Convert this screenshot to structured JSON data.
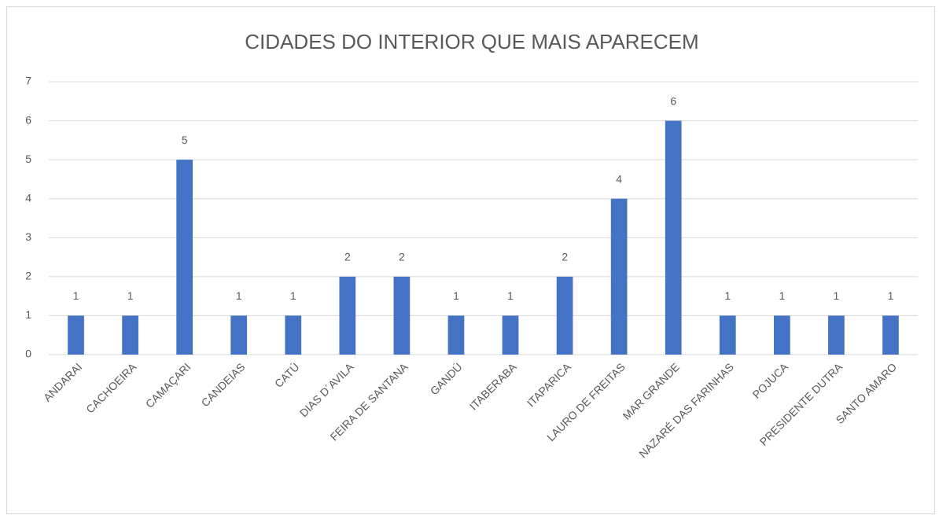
{
  "chart_data": {
    "type": "bar",
    "title": "CIDADES DO INTERIOR QUE MAIS APARECEM",
    "categories": [
      "ANDARAI",
      "CACHOEIRA",
      "CAMAÇARI",
      "CANDEIAS",
      "CATÚ",
      "DIAS D´AVILA",
      "FEIRA DE SANTANA",
      "GANDÚ",
      "ITABERABA",
      "ITAPARICA",
      "LAURO DE FREITAS",
      "MAR GRANDE",
      "NAZARÉ DAS FARINHAS",
      "POJUCA",
      "PRESIDENTE DUTRA",
      "SANTO AMARO"
    ],
    "values": [
      1,
      1,
      5,
      1,
      1,
      2,
      2,
      1,
      1,
      2,
      4,
      6,
      1,
      1,
      1,
      1
    ],
    "color": "#4472c4",
    "ylim": [
      0,
      7
    ],
    "yticks": [
      0,
      1,
      2,
      3,
      4,
      5,
      6,
      7
    ],
    "grid": true
  }
}
